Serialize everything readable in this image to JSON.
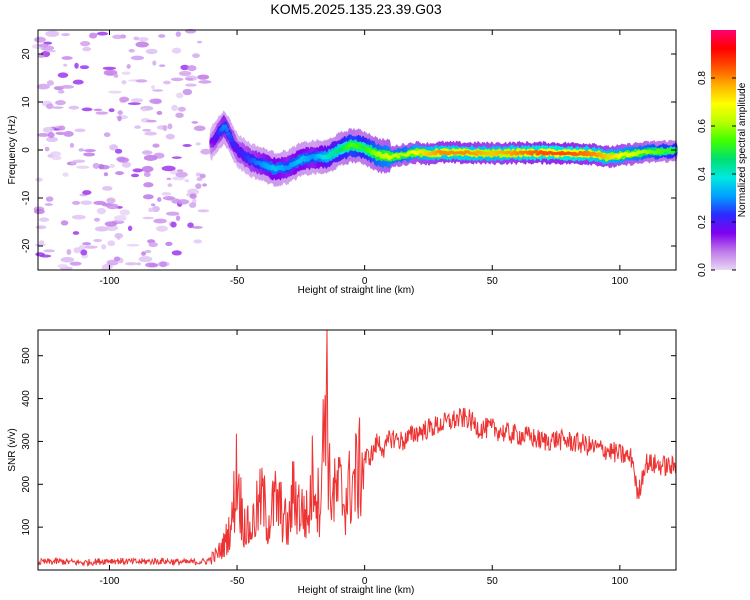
{
  "title": "KOM5.2025.135.23.39.G03",
  "chart_data": [
    {
      "type": "heatmap",
      "title": "KOM5.2025.135.23.39.G03",
      "xlabel": "Height of straight line (km)",
      "ylabel": "Frequency (Hz)",
      "xlim": [
        -128,
        122
      ],
      "ylim": [
        -25,
        25
      ],
      "xticks": [
        -100,
        -50,
        0,
        50,
        100
      ],
      "yticks": [
        -20,
        -10,
        0,
        10,
        20
      ],
      "colorbar": {
        "label": "Normalized spectral amplitude",
        "ticks": [
          0.0,
          0.2,
          0.4,
          0.6,
          0.8
        ],
        "range": [
          0,
          1
        ],
        "colors": [
          "#e8d6f7",
          "#c07ae8",
          "#8000f0",
          "#2b2bff",
          "#00a0ff",
          "#00e8e0",
          "#00e070",
          "#40ff00",
          "#b8ff00",
          "#ffff00",
          "#ffb000",
          "#ff5000",
          "#ff0000",
          "#ff0070"
        ]
      },
      "ridge": {
        "x": [
          -60,
          -55,
          -50,
          -45,
          -40,
          -35,
          -30,
          -25,
          -20,
          -15,
          -10,
          -5,
          0,
          5,
          10,
          15,
          20,
          25,
          30,
          40,
          50,
          60,
          70,
          80,
          90,
          95,
          100,
          105,
          110,
          115,
          122
        ],
        "frequency": [
          1.5,
          5,
          0,
          -2,
          -3,
          -4,
          -3.5,
          -2,
          -1.5,
          -1.5,
          0,
          1,
          0.5,
          -1,
          -1.5,
          -1,
          -0.5,
          -0.8,
          -0.5,
          -0.6,
          -0.7,
          -0.6,
          -0.6,
          -0.7,
          -0.8,
          -1.5,
          -1.2,
          -0.8,
          -0.5,
          -0.3,
          -0.2
        ],
        "amplitude": [
          0.15,
          0.3,
          0.2,
          0.25,
          0.3,
          0.35,
          0.3,
          0.35,
          0.3,
          0.4,
          0.45,
          0.55,
          0.5,
          0.6,
          0.65,
          0.6,
          0.7,
          0.75,
          0.8,
          0.8,
          0.75,
          0.8,
          0.85,
          0.85,
          0.8,
          0.75,
          0.7,
          0.65,
          0.6,
          0.55,
          0.5
        ]
      },
      "noise_region": {
        "x": [
          -128,
          -62
        ],
        "amplitude": 0.05
      }
    },
    {
      "type": "line",
      "xlabel": "Height of straight line (km)",
      "ylabel": "SNR (v/v)",
      "xlim": [
        -128,
        122
      ],
      "ylim": [
        0,
        560
      ],
      "xticks": [
        -100,
        -50,
        0,
        50,
        100
      ],
      "yticks": [
        100,
        200,
        300,
        400,
        500
      ],
      "color": "#ee3333",
      "series": [
        {
          "x": [
            -128,
            -120,
            -110,
            -100,
            -90,
            -80,
            -70,
            -62,
            -58,
            -55,
            -52,
            -50,
            -48,
            -45,
            -42,
            -40,
            -38,
            -35,
            -32,
            -30,
            -28,
            -25,
            -22,
            -20,
            -18,
            -16,
            -15,
            -14,
            -12,
            -10,
            -8,
            -5,
            -2,
            0,
            3,
            5,
            8,
            10,
            15,
            20,
            25,
            30,
            35,
            40,
            45,
            50,
            55,
            60,
            65,
            70,
            75,
            80,
            85,
            90,
            95,
            100,
            105,
            107,
            110,
            115,
            122
          ],
          "y": [
            18,
            20,
            17,
            22,
            19,
            21,
            18,
            20,
            35,
            60,
            110,
            240,
            120,
            90,
            140,
            170,
            110,
            160,
            130,
            90,
            180,
            140,
            120,
            240,
            150,
            300,
            545,
            200,
            170,
            190,
            160,
            200,
            230,
            260,
            270,
            300,
            280,
            310,
            300,
            320,
            330,
            340,
            350,
            355,
            330,
            330,
            320,
            315,
            310,
            300,
            305,
            300,
            295,
            285,
            280,
            270,
            260,
            170,
            250,
            245,
            240
          ]
        }
      ]
    }
  ]
}
